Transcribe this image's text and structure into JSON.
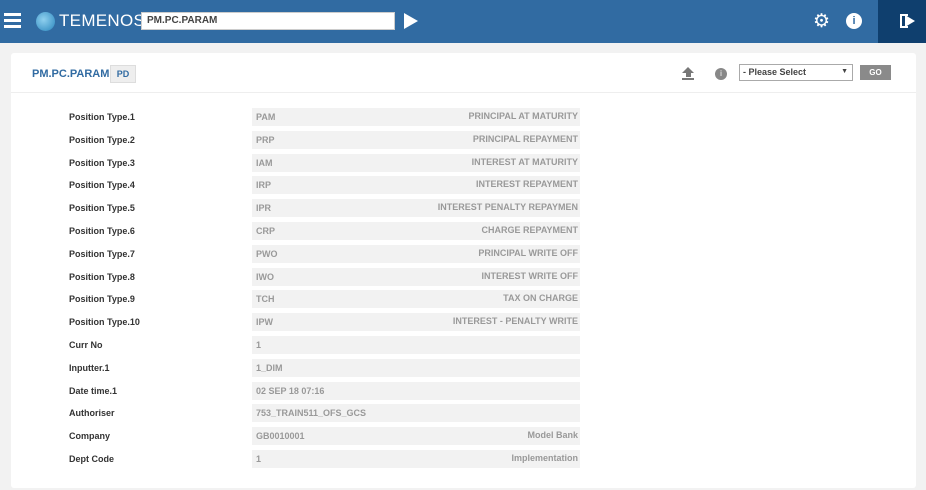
{
  "topbar": {
    "brand": "TEMENOS",
    "command": "PM.PC.PARAM"
  },
  "header": {
    "title": "PM.PC.PARAM",
    "badge": "PD",
    "select": "- Please Select",
    "go": "GO"
  },
  "rows": [
    {
      "label": "Position Type.1",
      "code": "PAM",
      "desc": "PRINCIPAL AT MATURITY"
    },
    {
      "label": "Position Type.2",
      "code": "PRP",
      "desc": "PRINCIPAL REPAYMENT"
    },
    {
      "label": "Position Type.3",
      "code": "IAM",
      "desc": "INTEREST AT MATURITY"
    },
    {
      "label": "Position Type.4",
      "code": "IRP",
      "desc": "INTEREST REPAYMENT"
    },
    {
      "label": "Position Type.5",
      "code": "IPR",
      "desc": "INTEREST PENALTY REPAYMEN"
    },
    {
      "label": "Position Type.6",
      "code": "CRP",
      "desc": "CHARGE REPAYMENT"
    },
    {
      "label": "Position Type.7",
      "code": "PWO",
      "desc": "PRINCIPAL WRITE OFF"
    },
    {
      "label": "Position Type.8",
      "code": "IWO",
      "desc": "INTEREST WRITE OFF"
    },
    {
      "label": "Position Type.9",
      "code": "TCH",
      "desc": "TAX ON CHARGE"
    },
    {
      "label": "Position Type.10",
      "code": "IPW",
      "desc": "INTEREST - PENALTY WRITE"
    },
    {
      "label": "Curr No",
      "code": "1",
      "desc": ""
    },
    {
      "label": "Inputter.1",
      "code": "1_DIM",
      "desc": ""
    },
    {
      "label": "Date time.1",
      "code": "02 SEP 18 07:16",
      "desc": ""
    },
    {
      "label": "Authoriser",
      "code": "753_TRAIN511_OFS_GCS",
      "desc": ""
    },
    {
      "label": "Company",
      "code": "GB0010001",
      "desc": "Model Bank"
    },
    {
      "label": "Dept Code",
      "code": "1",
      "desc": "Implementation"
    }
  ]
}
